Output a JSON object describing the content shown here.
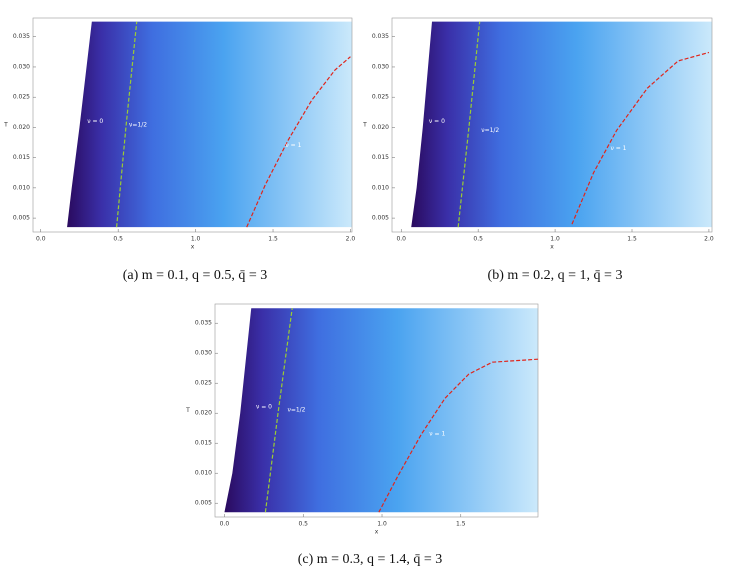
{
  "chart_data": [
    {
      "type": "density",
      "caption": "(a)  m = 0.1, q = 0.5, q̄ = 3",
      "xlabel": "x",
      "ylabel": "T",
      "xlim": [
        -0.05,
        2.01
      ],
      "ylim": [
        0.0027,
        0.0381
      ],
      "xticks": [
        {
          "value": 0,
          "label": "0.0"
        },
        0.5,
        {
          "value": 1,
          "label": "1.0"
        },
        1.5,
        {
          "value": 2,
          "label": "2.0"
        }
      ],
      "yticks": [
        0.005,
        {
          "value": 0.01,
          "label": "0.010"
        },
        0.015,
        {
          "value": 0.02,
          "label": "0.020"
        },
        0.025,
        {
          "value": 0.03,
          "label": "0.030"
        },
        0.035
      ],
      "boundary": {
        "x": [
          0.17,
          0.2,
          0.25,
          0.33
        ],
        "y": [
          0.0035,
          0.01,
          0.02,
          0.0375
        ]
      },
      "series": [
        {
          "color": "#9acd32",
          "x": [
            0.49,
            0.55,
            0.62
          ],
          "y": [
            0.0035,
            0.02,
            0.0375
          ]
        },
        {
          "color": "#e0251b",
          "x": [
            1.33,
            1.45,
            1.6,
            1.75,
            1.9,
            2.0
          ],
          "y": [
            0.0035,
            0.0105,
            0.018,
            0.0245,
            0.0295,
            0.0317
          ]
        }
      ],
      "annotations": [
        {
          "text": "ν = 0",
          "x": 0.3,
          "y": 0.021
        },
        {
          "text": "ν=1/2",
          "x": 0.57,
          "y": 0.0204
        },
        {
          "text": "ν = 1",
          "x": 1.58,
          "y": 0.017
        }
      ]
    },
    {
      "type": "density",
      "caption": "(b)  m = 0.2, q = 1, q̄ = 3",
      "xlabel": "x",
      "ylabel": "T",
      "xlim": [
        -0.06,
        2.02
      ],
      "ylim": [
        0.0027,
        0.0381
      ],
      "xticks": [
        {
          "value": 0,
          "label": "0.0"
        },
        0.5,
        {
          "value": 1,
          "label": "1.0"
        },
        1.5,
        {
          "value": 2,
          "label": "2.0"
        }
      ],
      "yticks": [
        0.005,
        {
          "value": 0.01,
          "label": "0.010"
        },
        0.015,
        {
          "value": 0.02,
          "label": "0.020"
        },
        0.025,
        {
          "value": 0.03,
          "label": "0.030"
        },
        0.035
      ],
      "boundary": {
        "x": [
          0.065,
          0.1,
          0.14,
          0.2
        ],
        "y": [
          0.0035,
          0.01,
          0.02,
          0.0375
        ]
      },
      "series": [
        {
          "color": "#9acd32",
          "x": [
            0.37,
            0.44,
            0.51
          ],
          "y": [
            0.0035,
            0.02,
            0.0375
          ]
        },
        {
          "color": "#e0251b",
          "x": [
            1.11,
            1.25,
            1.4,
            1.6,
            1.8,
            2.0
          ],
          "y": [
            0.004,
            0.0125,
            0.0195,
            0.0265,
            0.031,
            0.0324
          ]
        }
      ],
      "annotations": [
        {
          "text": "ν = 0",
          "x": 0.18,
          "y": 0.021
        },
        {
          "text": "ν=1/2",
          "x": 0.52,
          "y": 0.0195
        },
        {
          "text": "ν = 1",
          "x": 1.36,
          "y": 0.0165
        }
      ]
    },
    {
      "type": "density",
      "caption": "(c)  m = 0.3, q = 1.4, q̄ = 3",
      "xlabel": "x",
      "ylabel": "T",
      "xlim": [
        -0.06,
        1.99
      ],
      "ylim": [
        0.0027,
        0.0382
      ],
      "xticks": [
        {
          "value": 0,
          "label": "0.0"
        },
        0.5,
        {
          "value": 1,
          "label": "1.0"
        },
        1.5
      ],
      "yticks": [
        0.005,
        {
          "value": 0.01,
          "label": "0.010"
        },
        0.015,
        {
          "value": 0.02,
          "label": "0.020"
        },
        0.025,
        {
          "value": 0.03,
          "label": "0.030"
        },
        0.035
      ],
      "boundary": {
        "x": [
          0.0,
          0.05,
          0.1,
          0.17
        ],
        "y": [
          0.0035,
          0.01,
          0.02,
          0.0375
        ]
      },
      "series": [
        {
          "color": "#9acd32",
          "x": [
            0.26,
            0.34,
            0.43
          ],
          "y": [
            0.0035,
            0.02,
            0.0375
          ]
        },
        {
          "color": "#e0251b",
          "x": [
            0.98,
            1.1,
            1.25,
            1.4,
            1.55,
            1.7,
            1.99
          ],
          "y": [
            0.0035,
            0.0095,
            0.0165,
            0.0225,
            0.0265,
            0.0285,
            0.029
          ]
        }
      ],
      "annotations": [
        {
          "text": "ν = 0",
          "x": 0.2,
          "y": 0.021
        },
        {
          "text": "ν=1/2",
          "x": 0.4,
          "y": 0.0205
        },
        {
          "text": "ν = 1",
          "x": 1.3,
          "y": 0.0165
        }
      ]
    }
  ]
}
